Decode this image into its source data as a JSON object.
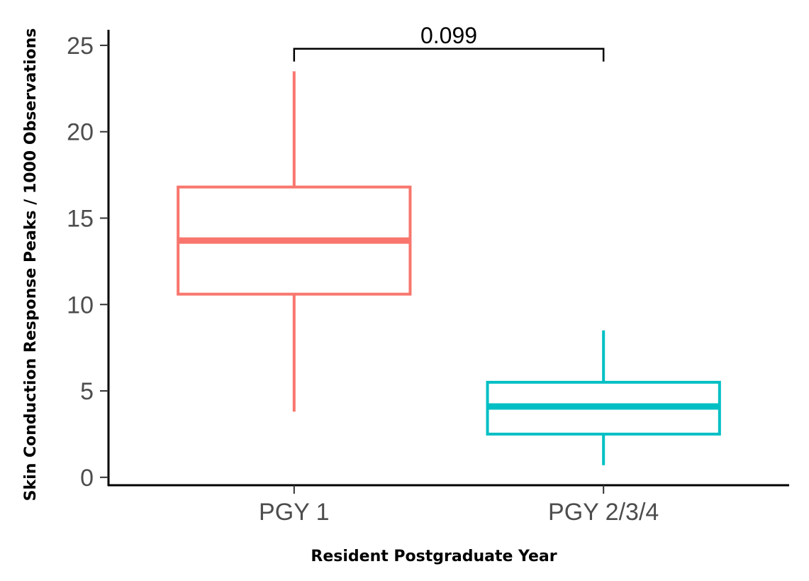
{
  "chart_data": {
    "type": "box",
    "title": "",
    "xlabel": "Resident Postgraduate Year",
    "ylabel": "Skin Conduction Response Peaks / 1000 Observations",
    "ylim": [
      -0.5,
      25.9
    ],
    "yticks": [
      0,
      5,
      10,
      15,
      20,
      25
    ],
    "ytick_labels": [
      "0",
      "5",
      "10",
      "15",
      "20",
      "25"
    ],
    "categories": [
      "PGY 1",
      "PGY 2/3/4"
    ],
    "boxes": [
      {
        "category": "PGY 1",
        "min": 3.8,
        "q1": 10.6,
        "median": 13.7,
        "q3": 16.8,
        "max": 23.5,
        "color": "#F8766D"
      },
      {
        "category": "PGY 2/3/4",
        "min": 0.7,
        "q1": 2.5,
        "median": 4.1,
        "q3": 5.5,
        "max": 8.5,
        "color": "#00BFC4"
      }
    ],
    "annotations": [
      {
        "type": "bracket",
        "from": "PGY 1",
        "to": "PGY 2/3/4",
        "y": 24.8,
        "label": "0.099"
      }
    ],
    "grid": false,
    "legend": "none"
  }
}
